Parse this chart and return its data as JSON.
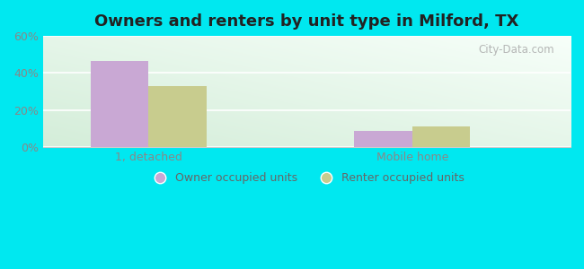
{
  "title": "Owners and renters by unit type in Milford, TX",
  "categories": [
    "1, detached",
    "Mobile home"
  ],
  "owner_values": [
    46.5,
    9.0
  ],
  "renter_values": [
    33.0,
    11.0
  ],
  "owner_color": "#c9a8d4",
  "renter_color": "#c8cc8e",
  "background_outer": "#00e8f0",
  "ylim": [
    0,
    60
  ],
  "yticks": [
    0,
    20,
    40,
    60
  ],
  "ytick_labels": [
    "0%",
    "20%",
    "40%",
    "60%"
  ],
  "bar_width": 0.55,
  "group_positions": [
    1.5,
    4.0
  ],
  "xlim": [
    0.5,
    5.5
  ],
  "legend_labels": [
    "Owner occupied units",
    "Renter occupied units"
  ],
  "watermark": "City-Data.com",
  "title_fontsize": 13,
  "tick_fontsize": 9,
  "legend_fontsize": 9
}
